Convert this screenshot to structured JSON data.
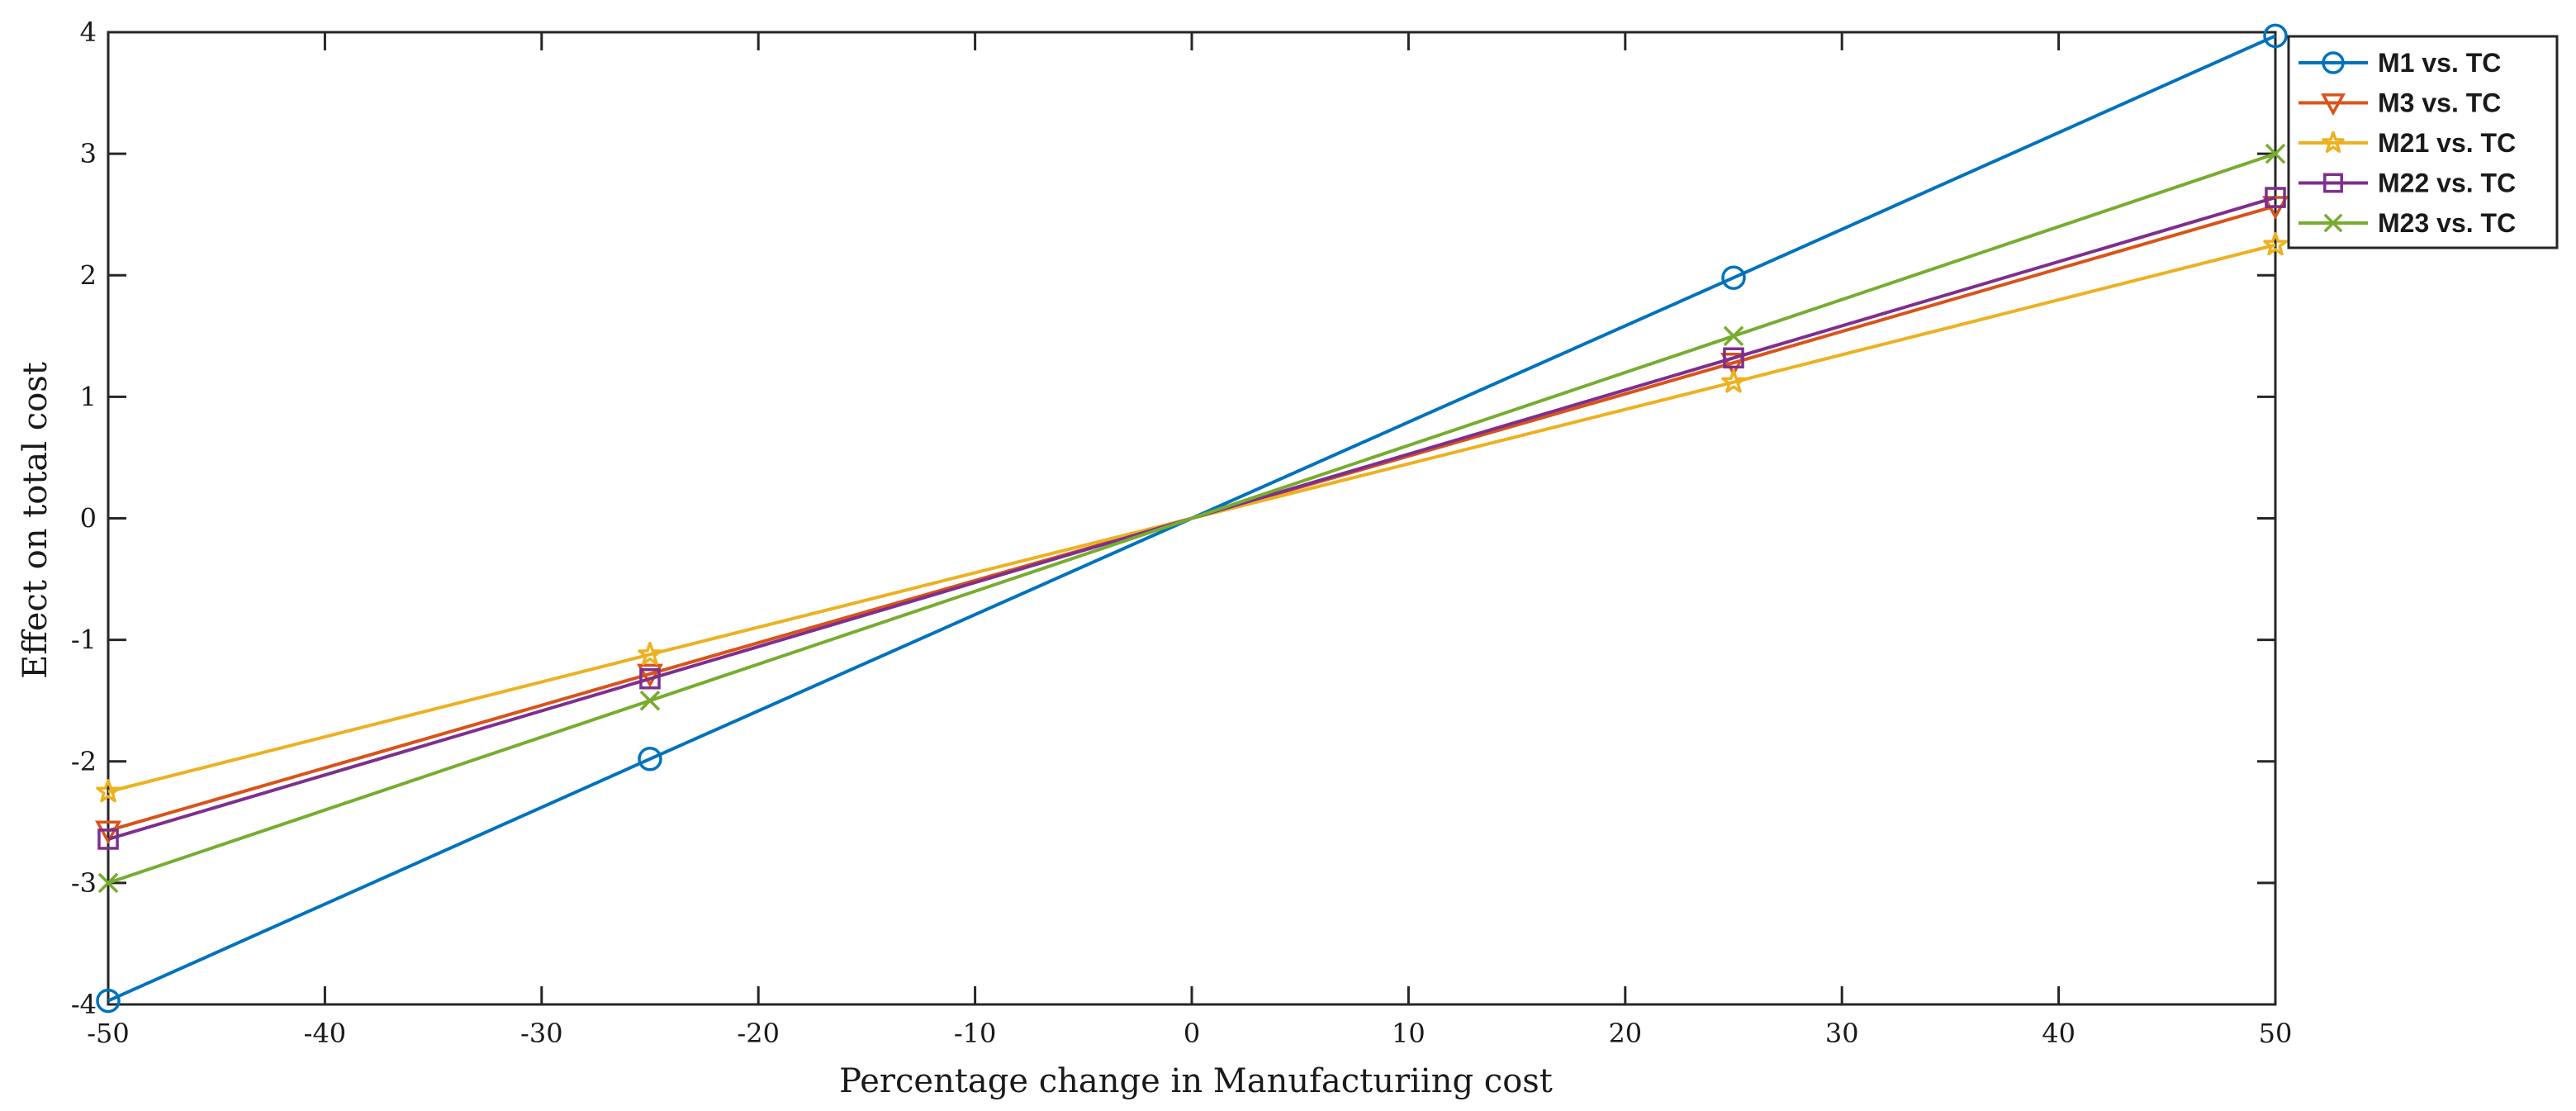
{
  "chart_data": {
    "type": "line",
    "title": "",
    "xlabel": "Percentage change in Manufacturiing cost",
    "ylabel": "Effect on total cost",
    "xlim": [
      -50,
      50
    ],
    "ylim": [
      -4,
      4
    ],
    "xticks": [
      -50,
      -40,
      -30,
      -20,
      -10,
      0,
      10,
      20,
      30,
      40,
      50
    ],
    "yticks": [
      -4,
      -3,
      -2,
      -1,
      0,
      1,
      2,
      3,
      4
    ],
    "xtick_labels": [
      "-50",
      "-40",
      "-30",
      "-20",
      "-10",
      "0",
      "10",
      "20",
      "30",
      "40",
      "50"
    ],
    "ytick_labels": [
      "-4",
      "-3",
      "-2",
      "-1",
      "0",
      "1",
      "2",
      "3",
      "4"
    ],
    "grid": false,
    "legend_position": "top-right",
    "x": [
      -50,
      -25,
      0,
      25,
      50
    ],
    "series": [
      {
        "name": "M1 vs. TC",
        "color": "#0072BD",
        "marker": "circle",
        "values": [
          -3.97,
          -1.98,
          0,
          1.98,
          3.97
        ]
      },
      {
        "name": "M3 vs. TC",
        "color": "#D95319",
        "marker": "triangle-down",
        "values": [
          -2.57,
          -1.28,
          0,
          1.28,
          2.57
        ]
      },
      {
        "name": "M21 vs. TC",
        "color": "#EDB120",
        "marker": "star",
        "values": [
          -2.25,
          -1.12,
          0,
          1.12,
          2.25
        ]
      },
      {
        "name": "M22 vs. TC",
        "color": "#7E2F8E",
        "marker": "square",
        "values": [
          -2.64,
          -1.32,
          0,
          1.32,
          2.64
        ]
      },
      {
        "name": "M23 vs. TC",
        "color": "#77AC30",
        "marker": "x",
        "values": [
          -3.0,
          -1.5,
          0,
          1.5,
          3.0
        ]
      }
    ]
  }
}
